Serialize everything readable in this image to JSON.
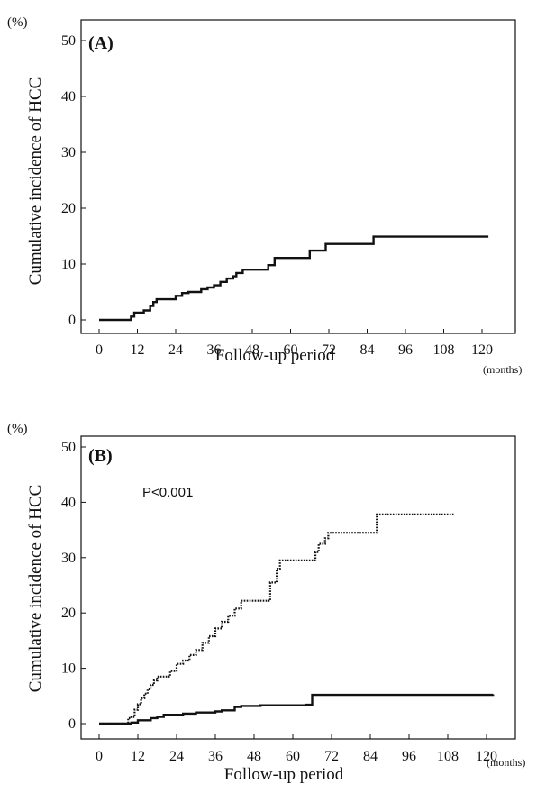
{
  "colors": {
    "line": "#111111",
    "background": "#ffffff"
  },
  "chart_data": [
    {
      "type": "line",
      "panel_label": "(A)",
      "y_unit": "(%)",
      "x_unit": "(months)",
      "xlabel": "Follow-up period",
      "ylabel": "Cumulative incidence of HCC",
      "xlim": [
        0,
        120
      ],
      "ylim": [
        0,
        50
      ],
      "xticks": [
        "0",
        "12",
        "24",
        "36",
        "48",
        "60",
        "72",
        "84",
        "96",
        "108",
        "120"
      ],
      "yticks": [
        "0",
        "10",
        "20",
        "30",
        "40",
        "50"
      ],
      "annotation": "",
      "grid": false,
      "series": [
        {
          "style": "solid",
          "x": [
            0,
            8,
            10,
            11,
            14,
            16,
            17,
            18,
            24,
            26,
            28,
            32,
            34,
            36,
            38,
            40,
            42,
            43,
            45,
            53,
            55,
            65,
            66,
            70,
            71,
            85,
            86,
            122
          ],
          "y": [
            0,
            0,
            0.6,
            1.3,
            1.7,
            2.5,
            3.2,
            3.7,
            4.3,
            4.8,
            5.0,
            5.5,
            5.8,
            6.2,
            6.8,
            7.4,
            7.8,
            8.4,
            9.0,
            9.8,
            11.1,
            11.1,
            12.4,
            12.4,
            13.6,
            13.6,
            14.9,
            14.9
          ]
        }
      ]
    },
    {
      "type": "line",
      "panel_label": "(B)",
      "y_unit": "(%)",
      "x_unit": "(months)",
      "xlabel": "Follow-up period",
      "ylabel": "Cumulative incidence of HCC",
      "xlim": [
        0,
        120
      ],
      "ylim": [
        0,
        50
      ],
      "xticks": [
        "0",
        "12",
        "24",
        "36",
        "48",
        "60",
        "72",
        "84",
        "96",
        "108",
        "120"
      ],
      "yticks": [
        "0",
        "10",
        "20",
        "30",
        "40",
        "50"
      ],
      "annotation": "P<0.001",
      "grid": false,
      "series": [
        {
          "style": "dotted",
          "x": [
            0,
            8,
            9,
            10,
            11,
            12,
            13,
            14,
            15,
            16,
            17,
            18,
            22,
            24,
            26,
            28,
            30,
            32,
            34,
            36,
            38,
            40,
            42,
            44,
            51,
            53,
            55,
            56,
            66,
            67,
            68,
            70,
            71,
            84,
            86,
            110
          ],
          "y": [
            0,
            0,
            1.0,
            1.2,
            2.5,
            3.5,
            4.6,
            5.4,
            6.2,
            7.0,
            7.8,
            8.5,
            9.5,
            10.8,
            11.4,
            12.4,
            13.3,
            14.6,
            15.8,
            17.2,
            18.4,
            19.5,
            20.8,
            22.2,
            22.2,
            25.5,
            28.0,
            29.5,
            29.5,
            31.0,
            32.5,
            33.5,
            34.5,
            34.5,
            37.8,
            37.8
          ]
        },
        {
          "style": "solid",
          "x": [
            0,
            8,
            10,
            12,
            16,
            18,
            20,
            26,
            30,
            36,
            38,
            42,
            44,
            50,
            60,
            64,
            66,
            122
          ],
          "y": [
            0,
            0,
            0.2,
            0.6,
            1.0,
            1.2,
            1.6,
            1.8,
            2.0,
            2.2,
            2.4,
            3.0,
            3.2,
            3.3,
            3.3,
            3.4,
            5.2,
            5.3
          ]
        }
      ]
    }
  ]
}
